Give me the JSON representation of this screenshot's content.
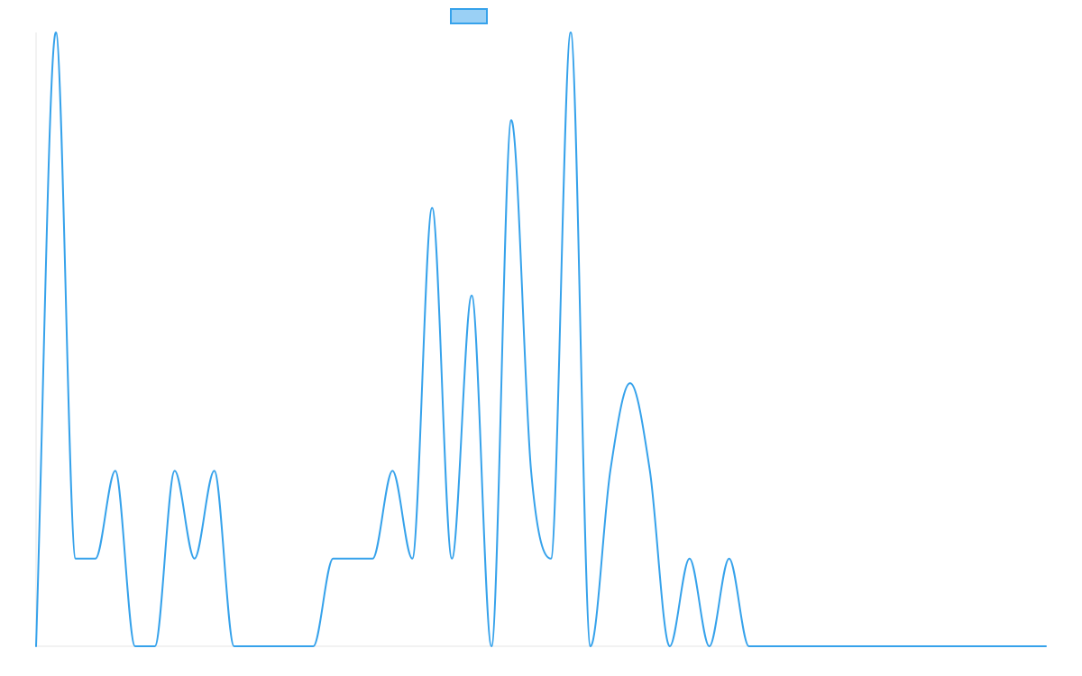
{
  "chart_data": {
    "type": "line",
    "title": "",
    "xlabel": "",
    "ylabel": "",
    "grid": false,
    "legend": {
      "placement": "top-center"
    },
    "colors": {
      "line": "#36a2eb",
      "legend_fill": "#9ad0f5",
      "axis": "#e6e6e6"
    },
    "ylim": [
      0,
      7
    ],
    "x": [
      0,
      1,
      2,
      3,
      4,
      5,
      6,
      7,
      8,
      9,
      10,
      11,
      12,
      13,
      14,
      15,
      16,
      17,
      18,
      19,
      20,
      21,
      22,
      23,
      24,
      25,
      26,
      27,
      28,
      29,
      30,
      31,
      32,
      33,
      34,
      35,
      36,
      37,
      38,
      39,
      40,
      41,
      42,
      43,
      44,
      45,
      46,
      47,
      48,
      49,
      50,
      51
    ],
    "series": [
      {
        "values": [
          0,
          7,
          1,
          1,
          2,
          0,
          0,
          2,
          1,
          2,
          0,
          0,
          0,
          0,
          0,
          1,
          1,
          1,
          2,
          1,
          5,
          1,
          4,
          0,
          6,
          2,
          1,
          7,
          0,
          2,
          3,
          2,
          0,
          1,
          0,
          1,
          0,
          0,
          0,
          0,
          0,
          0,
          0,
          0,
          0,
          0,
          0,
          0,
          0,
          0,
          0,
          0
        ]
      }
    ]
  }
}
